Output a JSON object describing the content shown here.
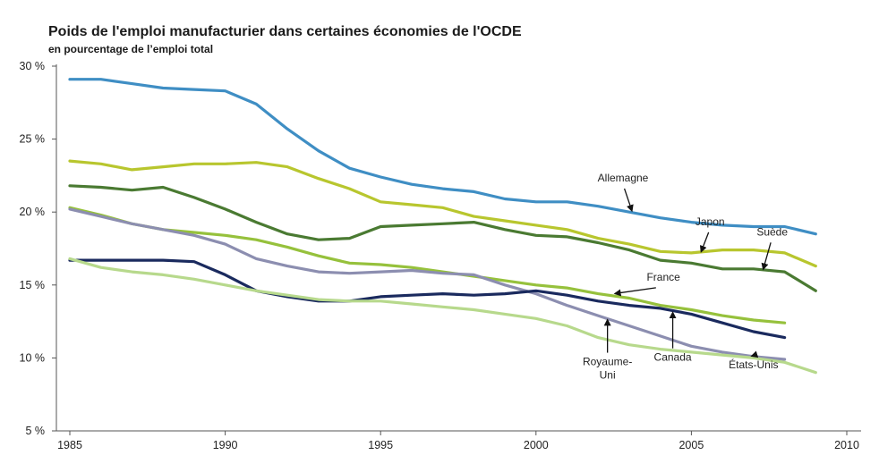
{
  "chart_data": {
    "type": "line",
    "title": "Poids de l'emploi manufacturier dans certaines économies de l'OCDE",
    "subtitle": "en pourcentage de l’emploi total",
    "xlabel": "",
    "ylabel": "",
    "xlim": [
      1985,
      2010
    ],
    "ylim": [
      5,
      30
    ],
    "x_ticks": [
      1985,
      1990,
      1995,
      2000,
      2005,
      2010
    ],
    "x_tick_labels": [
      "1985",
      "1990",
      "1995",
      "2000",
      "2005",
      "2010"
    ],
    "y_ticks": [
      5,
      10,
      15,
      20,
      25,
      30
    ],
    "y_tick_labels": [
      "5 %",
      "10 %",
      "15 %",
      "20 %",
      "25 %",
      "30 %"
    ],
    "grid": false,
    "series": [
      {
        "name": "Allemagne",
        "color": "#3f8ec4",
        "x": [
          1985,
          1986,
          1987,
          1988,
          1989,
          1990,
          1991,
          1992,
          1993,
          1994,
          1995,
          1996,
          1997,
          1998,
          1999,
          2000,
          2001,
          2002,
          2003,
          2004,
          2005,
          2006,
          2007,
          2008,
          2009
        ],
        "values": [
          29.1,
          29.1,
          28.8,
          28.5,
          28.4,
          28.3,
          27.4,
          25.7,
          24.2,
          23.0,
          22.4,
          21.9,
          21.6,
          21.4,
          20.9,
          20.7,
          20.7,
          20.4,
          20.0,
          19.6,
          19.3,
          19.1,
          19.0,
          19.0,
          18.5
        ]
      },
      {
        "name": "Japon",
        "color": "#b8c62e",
        "x": [
          1985,
          1986,
          1987,
          1988,
          1989,
          1990,
          1991,
          1992,
          1993,
          1994,
          1995,
          1996,
          1997,
          1998,
          1999,
          2000,
          2001,
          2002,
          2003,
          2004,
          2005,
          2006,
          2007,
          2008,
          2009
        ],
        "values": [
          23.5,
          23.3,
          22.9,
          23.1,
          23.3,
          23.3,
          23.4,
          23.1,
          22.3,
          21.6,
          20.7,
          20.5,
          20.3,
          19.7,
          19.4,
          19.1,
          18.8,
          18.2,
          17.8,
          17.3,
          17.2,
          17.4,
          17.4,
          17.2,
          16.3
        ]
      },
      {
        "name": "Suède",
        "color": "#4a7a32",
        "x": [
          1985,
          1986,
          1987,
          1988,
          1989,
          1990,
          1991,
          1992,
          1993,
          1994,
          1995,
          1996,
          1997,
          1998,
          1999,
          2000,
          2001,
          2002,
          2003,
          2004,
          2005,
          2006,
          2007,
          2008,
          2009
        ],
        "values": [
          21.8,
          21.7,
          21.5,
          21.7,
          21.0,
          20.2,
          19.3,
          18.5,
          18.1,
          18.2,
          19.0,
          19.1,
          19.2,
          19.3,
          18.8,
          18.4,
          18.3,
          17.9,
          17.4,
          16.7,
          16.5,
          16.1,
          16.1,
          15.9,
          14.6
        ]
      },
      {
        "name": "France",
        "color": "#96c13c",
        "x": [
          1985,
          1986,
          1987,
          1988,
          1989,
          1990,
          1991,
          1992,
          1993,
          1994,
          1995,
          1996,
          1997,
          1998,
          1999,
          2000,
          2001,
          2002,
          2003,
          2004,
          2005,
          2006,
          2007,
          2008
        ],
        "values": [
          20.3,
          19.8,
          19.2,
          18.8,
          18.6,
          18.4,
          18.1,
          17.6,
          17.0,
          16.5,
          16.4,
          16.2,
          15.9,
          15.6,
          15.3,
          15.0,
          14.8,
          14.4,
          14.1,
          13.6,
          13.3,
          12.9,
          12.6,
          12.4
        ]
      },
      {
        "name": "Royaume-Uni",
        "color": "#8c8eb0",
        "x": [
          1985,
          1986,
          1987,
          1988,
          1989,
          1990,
          1991,
          1992,
          1993,
          1994,
          1995,
          1996,
          1997,
          1998,
          1999,
          2000,
          2001,
          2002,
          2003,
          2004,
          2005,
          2006,
          2007,
          2008
        ],
        "values": [
          20.2,
          19.7,
          19.2,
          18.8,
          18.4,
          17.8,
          16.8,
          16.3,
          15.9,
          15.8,
          15.9,
          16.0,
          15.8,
          15.7,
          15.0,
          14.4,
          13.6,
          12.9,
          12.2,
          11.5,
          10.8,
          10.4,
          10.1,
          9.9
        ]
      },
      {
        "name": "Canada",
        "color": "#1a2a5e",
        "x": [
          1985,
          1986,
          1987,
          1988,
          1989,
          1990,
          1991,
          1992,
          1993,
          1994,
          1995,
          1996,
          1997,
          1998,
          1999,
          2000,
          2001,
          2002,
          2003,
          2004,
          2005,
          2006,
          2007,
          2008
        ],
        "values": [
          16.7,
          16.7,
          16.7,
          16.7,
          16.6,
          15.7,
          14.6,
          14.2,
          13.9,
          13.9,
          14.2,
          14.3,
          14.4,
          14.3,
          14.4,
          14.6,
          14.3,
          13.9,
          13.6,
          13.4,
          13.0,
          12.4,
          11.8,
          11.4
        ]
      },
      {
        "name": "États-Unis",
        "color": "#b7d98c",
        "x": [
          1985,
          1986,
          1987,
          1988,
          1989,
          1990,
          1991,
          1992,
          1993,
          1994,
          1995,
          1996,
          1997,
          1998,
          1999,
          2000,
          2001,
          2002,
          2003,
          2004,
          2005,
          2006,
          2007,
          2008,
          2009
        ],
        "values": [
          16.8,
          16.2,
          15.9,
          15.7,
          15.4,
          15.0,
          14.6,
          14.3,
          14.0,
          13.9,
          13.9,
          13.7,
          13.5,
          13.3,
          13.0,
          12.7,
          12.2,
          11.4,
          10.9,
          10.6,
          10.4,
          10.2,
          10.0,
          9.7,
          9.0
        ]
      }
    ],
    "annotations": [
      {
        "label": "Allemagne",
        "series": "Allemagne",
        "point_x": 2003.1,
        "point_y": 20.0,
        "text_x": 2002.8,
        "text_y": 22.1
      },
      {
        "label": "Japon",
        "series": "Japon",
        "point_x": 2005.3,
        "point_y": 17.2,
        "text_x": 2005.6,
        "text_y": 19.1
      },
      {
        "label": "Suède",
        "series": "Suède",
        "point_x": 2007.3,
        "point_y": 16.0,
        "text_x": 2007.6,
        "text_y": 18.4
      },
      {
        "label": "France",
        "series": "France",
        "point_x": 2002.5,
        "point_y": 14.4,
        "text_x": 2004.1,
        "text_y": 15.3
      },
      {
        "label": "Royaume-Uni",
        "series": "Royaume-Uni",
        "point_x": 2002.3,
        "point_y": 12.7,
        "text_x": 2002.3,
        "text_y": 9.5,
        "lines": [
          "Royaume-",
          "Uni"
        ]
      },
      {
        "label": "Canada",
        "series": "Canada",
        "point_x": 2004.4,
        "point_y": 13.2,
        "text_x": 2004.4,
        "text_y": 9.8
      },
      {
        "label": "États-Unis",
        "series": "États-Unis",
        "point_x": 2006.9,
        "point_y": 10.1,
        "text_x": 2007.0,
        "text_y": 9.3
      }
    ]
  }
}
